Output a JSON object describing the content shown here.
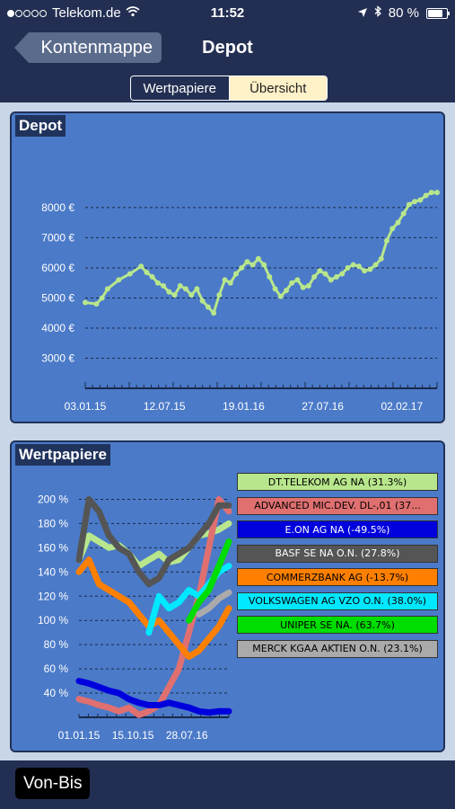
{
  "status": {
    "carrier": "Telekom.de",
    "time": "11:52",
    "battery": "80 %",
    "battery_level": 0.8
  },
  "nav": {
    "back_label": "Kontenmappe",
    "title": "Depot"
  },
  "segments": {
    "left": "Wertpapiere",
    "right": "Übersicht",
    "selected": "Übersicht"
  },
  "depot_panel": {
    "title": "Depot"
  },
  "securities_panel": {
    "title": "Wertpapiere"
  },
  "bottom": {
    "button_label": "Von-Bis"
  },
  "chart_data": [
    {
      "type": "line",
      "title": "Depot",
      "x_ticks": [
        "03.01.15",
        "12.07.15",
        "19.01.16",
        "27.07.16",
        "02.02.17"
      ],
      "y_ticks": [
        "3000 €",
        "4000 €",
        "5000 €",
        "6000 €",
        "7000 €",
        "8000 €"
      ],
      "ylim": [
        2000,
        9400
      ],
      "grid": true,
      "series": [
        {
          "color": "#b8e68c",
          "points": [
            [
              0,
              4850
            ],
            [
              2,
              4800
            ],
            [
              3,
              5000
            ],
            [
              4,
              5300
            ],
            [
              6,
              5600
            ],
            [
              8,
              5800
            ],
            [
              10,
              6050
            ],
            [
              11,
              5850
            ],
            [
              12,
              5700
            ],
            [
              13,
              5500
            ],
            [
              14,
              5400
            ],
            [
              15,
              5200
            ],
            [
              16,
              5100
            ],
            [
              17,
              5400
            ],
            [
              18,
              5300
            ],
            [
              19,
              5100
            ],
            [
              20,
              5300
            ],
            [
              21,
              4900
            ],
            [
              22,
              4700
            ],
            [
              23,
              4500
            ],
            [
              24,
              5100
            ],
            [
              25,
              5600
            ],
            [
              26,
              5500
            ],
            [
              27,
              5800
            ],
            [
              28,
              6000
            ],
            [
              29,
              6200
            ],
            [
              30,
              6100
            ],
            [
              31,
              6300
            ],
            [
              32,
              6100
            ],
            [
              33,
              5700
            ],
            [
              34,
              5300
            ],
            [
              35,
              5050
            ],
            [
              36,
              5250
            ],
            [
              37,
              5500
            ],
            [
              38,
              5600
            ],
            [
              39,
              5350
            ],
            [
              40,
              5400
            ],
            [
              41,
              5700
            ],
            [
              42,
              5900
            ],
            [
              43,
              5800
            ],
            [
              44,
              5600
            ],
            [
              45,
              5700
            ],
            [
              46,
              5800
            ],
            [
              47,
              6000
            ],
            [
              48,
              6100
            ],
            [
              49,
              6050
            ],
            [
              50,
              5900
            ],
            [
              51,
              5950
            ],
            [
              52,
              6100
            ],
            [
              53,
              6300
            ],
            [
              54,
              6900
            ],
            [
              55,
              7300
            ],
            [
              56,
              7500
            ],
            [
              57,
              7800
            ],
            [
              58,
              8100
            ],
            [
              59,
              8200
            ],
            [
              60,
              8250
            ],
            [
              61,
              8400
            ],
            [
              62,
              8500
            ],
            [
              63,
              8500
            ]
          ]
        }
      ]
    },
    {
      "type": "line",
      "title": "Wertpapiere",
      "x_ticks": [
        "01.01.15",
        "15.10.15",
        "28.07.16"
      ],
      "y_ticks": [
        "40 %",
        "60 %",
        "80 %",
        "100 %",
        "120 %",
        "140 %",
        "160 %",
        "180 %",
        "200 %"
      ],
      "ylim": [
        20,
        210
      ],
      "grid": true,
      "series": [
        {
          "name": "DT.TELEKOM AG NA (31.3%)",
          "color": "#b8e68c",
          "values": [
            150,
            170,
            165,
            160,
            162,
            155,
            145,
            150,
            155,
            148,
            150,
            160,
            170,
            172,
            175,
            180
          ]
        },
        {
          "name": "ADVANCED MIC.DEV. DL-,01 (37...",
          "color": "#e07070",
          "values": [
            35,
            33,
            30,
            28,
            25,
            28,
            22,
            25,
            30,
            45,
            60,
            90,
            120,
            160,
            200,
            190
          ]
        },
        {
          "name": "E.ON AG NA (-49.5%)",
          "color": "#0000dd",
          "values": [
            50,
            48,
            45,
            42,
            40,
            35,
            32,
            30,
            30,
            32,
            30,
            28,
            25,
            24,
            25,
            25
          ]
        },
        {
          "name": "BASF SE NA O.N. (27.8%)",
          "color": "#555555",
          "values": [
            150,
            200,
            190,
            170,
            160,
            155,
            140,
            130,
            135,
            150,
            155,
            160,
            170,
            180,
            195,
            195
          ]
        },
        {
          "name": "COMMERZBANK AG (-13.7%)",
          "color": "#ff8000",
          "values": [
            140,
            150,
            130,
            125,
            120,
            115,
            105,
            95,
            100,
            90,
            80,
            70,
            75,
            85,
            95,
            110
          ]
        },
        {
          "name": "VOLKSWAGEN AG VZO O.N. (38.0%)",
          "color": "#00e8ff",
          "values": [
            null,
            null,
            null,
            null,
            null,
            null,
            null,
            90,
            120,
            110,
            115,
            125,
            120,
            130,
            140,
            145
          ]
        },
        {
          "name": "UNIPER SE NA. (63.7%)",
          "color": "#00dd00",
          "values": [
            null,
            null,
            null,
            null,
            null,
            null,
            null,
            null,
            null,
            null,
            null,
            100,
            115,
            125,
            145,
            165
          ]
        },
        {
          "name": "MERCK KGAA AKTIEN O.N. (23.1%)",
          "color": "#aaaaaa",
          "values": [
            null,
            null,
            null,
            null,
            null,
            null,
            null,
            null,
            null,
            null,
            null,
            null,
            105,
            110,
            118,
            123
          ]
        }
      ]
    }
  ]
}
